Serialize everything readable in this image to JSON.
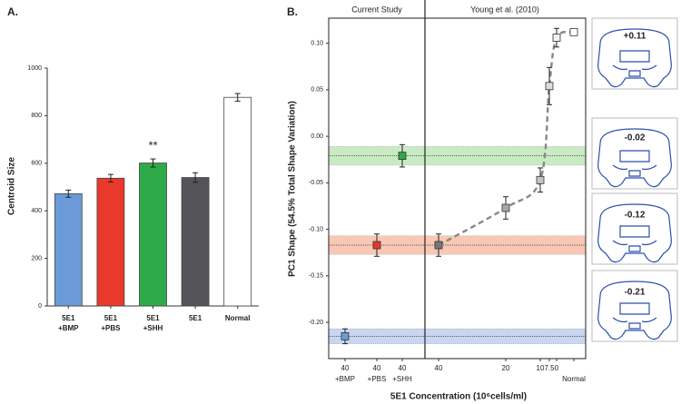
{
  "chart_data": [
    {
      "type": "bar",
      "panel_label": "A.",
      "ylabel": "Centroid Size",
      "categories": [
        [
          "5E1",
          "+BMP"
        ],
        [
          "5E1",
          "+PBS"
        ],
        [
          "5E1",
          "+SHH"
        ],
        [
          "5E1"
        ],
        [
          "Normal"
        ]
      ],
      "values": [
        472,
        537,
        601,
        540,
        877
      ],
      "errors": [
        15,
        16,
        17,
        20,
        16
      ],
      "colors": [
        "#6a9bd8",
        "#e8392b",
        "#2faa4a",
        "#555559",
        "#ffffff"
      ],
      "annotations": [
        {
          "text": "**"
        }
      ],
      "ylim": [
        0,
        1000
      ],
      "yticks": [
        0,
        200,
        400,
        600,
        800,
        1000
      ]
    },
    {
      "type": "scatter",
      "panel_label": "B.",
      "ylabel": "PC1 Shape (54.5% Total Shape Variation)",
      "xlabel": "5E1 Concentration (10⁶cells/ml)",
      "sections": [
        "Current Study",
        "Young et al. (2010)"
      ],
      "groups": [
        {
          "categories": [
            [
              "40",
              "+BMP"
            ],
            [
              "40",
              "+PBS"
            ],
            [
              "40",
              "+SHH"
            ]
          ],
          "values": [
            -0.215,
            -0.117,
            -0.021
          ],
          "errors": [
            0.008,
            0.012,
            0.012
          ],
          "colors": [
            "#6a9bd8",
            "#e8392b",
            "#2faa4a"
          ]
        },
        {
          "categories": [
            [
              "40"
            ],
            [
              "20"
            ],
            [
              "10"
            ],
            [
              "7.5"
            ],
            [
              "0"
            ],
            [
              "Normal"
            ]
          ],
          "values": [
            -0.117,
            -0.077,
            -0.047,
            0.054,
            0.106,
            0.112
          ],
          "errors": [
            0.012,
            0.012,
            0.013,
            0.02,
            0.01,
            0.003
          ],
          "colors": [
            "#777777",
            "#a8a8a8",
            "#c4c4c4",
            "#dddddd",
            "#f2f2f2",
            "#ffffff"
          ]
        }
      ],
      "band_colors": [
        "#c9d6f0",
        "#f8c8b4",
        "#c9ebc3"
      ],
      "band_halfwidths": [
        0.008,
        0.01,
        0.01
      ],
      "ylim": [
        -0.239,
        0.127
      ],
      "yticks": [
        {
          "value": -0.2,
          "label": "-0.20"
        },
        {
          "value": -0.15,
          "label": "-0.15"
        },
        {
          "value": -0.1,
          "label": "-0.10"
        },
        {
          "value": -0.05,
          "label": "-0.05"
        },
        {
          "value": 0,
          "label": "0.00"
        },
        {
          "value": 0.05,
          "label": "0.05"
        },
        {
          "value": 0.1,
          "label": "0.10"
        }
      ],
      "annotations": [
        "+0.11",
        "-0.02",
        "-0.12",
        "-0.21"
      ]
    }
  ]
}
